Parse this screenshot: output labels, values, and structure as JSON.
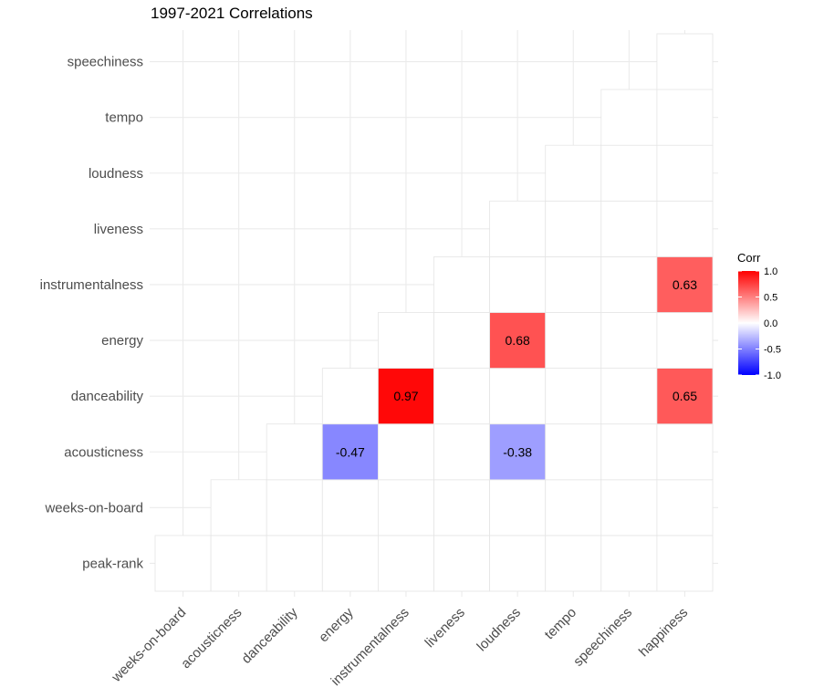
{
  "chart_data": {
    "type": "heatmap",
    "title": "1997-2021 Correlations",
    "x_categories": [
      "weeks-on-board",
      "acousticness",
      "danceability",
      "energy",
      "instrumentalness",
      "liveness",
      "loudness",
      "tempo",
      "speechiness",
      "happiness"
    ],
    "y_categories": [
      "peak-rank",
      "weeks-on-board",
      "acousticness",
      "danceability",
      "energy",
      "instrumentalness",
      "liveness",
      "loudness",
      "tempo",
      "speechiness"
    ],
    "cells": [
      {
        "x": "weeks-on-board",
        "y": "peak-rank",
        "value": null
      },
      {
        "x": "acousticness",
        "y": "peak-rank",
        "value": null
      },
      {
        "x": "acousticness",
        "y": "weeks-on-board",
        "value": null
      },
      {
        "x": "danceability",
        "y": "peak-rank",
        "value": null
      },
      {
        "x": "danceability",
        "y": "weeks-on-board",
        "value": null
      },
      {
        "x": "danceability",
        "y": "acousticness",
        "value": null
      },
      {
        "x": "energy",
        "y": "peak-rank",
        "value": null
      },
      {
        "x": "energy",
        "y": "weeks-on-board",
        "value": null
      },
      {
        "x": "energy",
        "y": "acousticness",
        "value": -0.47,
        "label": "-0.47"
      },
      {
        "x": "energy",
        "y": "danceability",
        "value": null
      },
      {
        "x": "instrumentalness",
        "y": "peak-rank",
        "value": null
      },
      {
        "x": "instrumentalness",
        "y": "weeks-on-board",
        "value": null
      },
      {
        "x": "instrumentalness",
        "y": "acousticness",
        "value": null
      },
      {
        "x": "instrumentalness",
        "y": "danceability",
        "value": 0.97,
        "label": "0.97"
      },
      {
        "x": "instrumentalness",
        "y": "energy",
        "value": null
      },
      {
        "x": "liveness",
        "y": "peak-rank",
        "value": null
      },
      {
        "x": "liveness",
        "y": "weeks-on-board",
        "value": null
      },
      {
        "x": "liveness",
        "y": "acousticness",
        "value": null
      },
      {
        "x": "liveness",
        "y": "danceability",
        "value": null
      },
      {
        "x": "liveness",
        "y": "energy",
        "value": null
      },
      {
        "x": "liveness",
        "y": "instrumentalness",
        "value": null
      },
      {
        "x": "loudness",
        "y": "peak-rank",
        "value": null
      },
      {
        "x": "loudness",
        "y": "weeks-on-board",
        "value": null
      },
      {
        "x": "loudness",
        "y": "acousticness",
        "value": -0.38,
        "label": "-0.38"
      },
      {
        "x": "loudness",
        "y": "danceability",
        "value": null
      },
      {
        "x": "loudness",
        "y": "energy",
        "value": 0.68,
        "label": "0.68"
      },
      {
        "x": "loudness",
        "y": "instrumentalness",
        "value": null
      },
      {
        "x": "loudness",
        "y": "liveness",
        "value": null
      },
      {
        "x": "tempo",
        "y": "peak-rank",
        "value": null
      },
      {
        "x": "tempo",
        "y": "weeks-on-board",
        "value": null
      },
      {
        "x": "tempo",
        "y": "acousticness",
        "value": null
      },
      {
        "x": "tempo",
        "y": "danceability",
        "value": null
      },
      {
        "x": "tempo",
        "y": "energy",
        "value": null
      },
      {
        "x": "tempo",
        "y": "instrumentalness",
        "value": null
      },
      {
        "x": "tempo",
        "y": "liveness",
        "value": null
      },
      {
        "x": "tempo",
        "y": "loudness",
        "value": null
      },
      {
        "x": "speechiness",
        "y": "peak-rank",
        "value": null
      },
      {
        "x": "speechiness",
        "y": "weeks-on-board",
        "value": null
      },
      {
        "x": "speechiness",
        "y": "acousticness",
        "value": null
      },
      {
        "x": "speechiness",
        "y": "danceability",
        "value": null
      },
      {
        "x": "speechiness",
        "y": "energy",
        "value": null
      },
      {
        "x": "speechiness",
        "y": "instrumentalness",
        "value": null
      },
      {
        "x": "speechiness",
        "y": "liveness",
        "value": null
      },
      {
        "x": "speechiness",
        "y": "loudness",
        "value": null
      },
      {
        "x": "speechiness",
        "y": "tempo",
        "value": null
      },
      {
        "x": "happiness",
        "y": "peak-rank",
        "value": null
      },
      {
        "x": "happiness",
        "y": "weeks-on-board",
        "value": null
      },
      {
        "x": "happiness",
        "y": "acousticness",
        "value": null
      },
      {
        "x": "happiness",
        "y": "danceability",
        "value": 0.65,
        "label": "0.65"
      },
      {
        "x": "happiness",
        "y": "energy",
        "value": null
      },
      {
        "x": "happiness",
        "y": "instrumentalness",
        "value": 0.63,
        "label": "0.63"
      },
      {
        "x": "happiness",
        "y": "liveness",
        "value": null
      },
      {
        "x": "happiness",
        "y": "loudness",
        "value": null
      },
      {
        "x": "happiness",
        "y": "tempo",
        "value": null
      },
      {
        "x": "happiness",
        "y": "speechiness",
        "value": null
      }
    ],
    "color_scale": {
      "low": "#0000ff",
      "mid": "#ffffff",
      "high": "#ff0000",
      "limits": [
        -1.0,
        1.0
      ]
    },
    "legend": {
      "title": "Corr",
      "ticks": [
        "1.0",
        "0.5",
        "0.0",
        "-0.5",
        "-1.0"
      ],
      "tick_values": [
        1.0,
        0.5,
        0.0,
        -0.5,
        -1.0
      ],
      "placement": "right"
    },
    "grid": true
  }
}
